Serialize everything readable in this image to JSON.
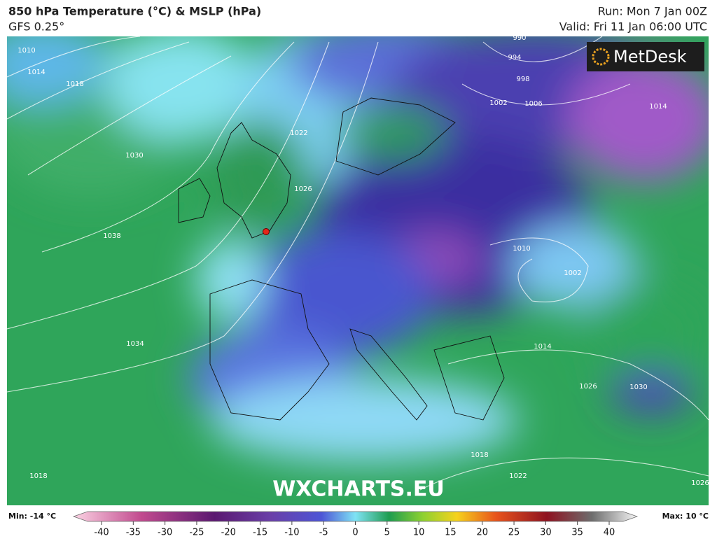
{
  "header": {
    "title": "850 hPa Temperature (°C) & MSLP (hPa)",
    "model": "GFS 0.25°",
    "run": "Run: Mon 7 Jan 00Z",
    "valid": "Valid: Fri 11 Jan 06:00 UTC"
  },
  "map": {
    "logo": "MetDesk",
    "watermark": "WXCHARTS.EU",
    "isobar_labels": [
      1010,
      1014,
      1018,
      1030,
      1038,
      1034,
      1022,
      1026,
      990,
      994,
      998,
      1002,
      1006,
      1014,
      1010,
      1002,
      1014,
      1026,
      1030,
      1018,
      1022,
      1018,
      1026
    ]
  },
  "legend": {
    "min": "Min: -14 °C",
    "max": "Max: 10 °C",
    "ticks": [
      -40,
      -35,
      -30,
      -25,
      -20,
      -15,
      -10,
      -5,
      0,
      5,
      10,
      15,
      20,
      25,
      30,
      35,
      40
    ]
  }
}
